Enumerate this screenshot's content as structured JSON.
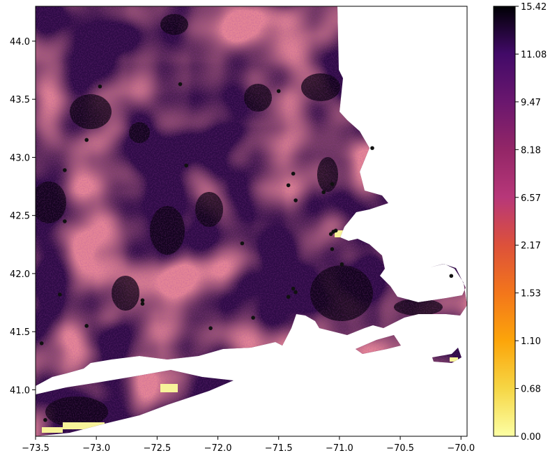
{
  "map": {
    "x_ticks": [
      {
        "value": -73.5,
        "label": "−73.5"
      },
      {
        "value": -73.0,
        "label": "−73.0"
      },
      {
        "value": -72.5,
        "label": "−72.5"
      },
      {
        "value": -72.0,
        "label": "−72.0"
      },
      {
        "value": -71.5,
        "label": "−71.5"
      },
      {
        "value": -71.0,
        "label": "−71.0"
      },
      {
        "value": -70.5,
        "label": "−70.5"
      },
      {
        "value": -70.0,
        "label": "−70.0"
      }
    ],
    "y_ticks": [
      {
        "value": 41.0,
        "label": "41.0"
      },
      {
        "value": 41.5,
        "label": "41.5"
      },
      {
        "value": 42.0,
        "label": "42.0"
      },
      {
        "value": 42.5,
        "label": "42.5"
      },
      {
        "value": 43.0,
        "label": "43.0"
      },
      {
        "value": 43.5,
        "label": "43.5"
      },
      {
        "value": 44.0,
        "label": "44.0"
      }
    ],
    "xlim": [
      -73.5,
      -69.95
    ],
    "ylim": [
      40.6,
      44.3
    ],
    "colormap": "inferno_r",
    "colors": {
      "low": "#fcffa4",
      "mid": "#c73e4c",
      "high": "#000004"
    }
  },
  "colorbar": {
    "ticks": [
      "0.00",
      "0.68",
      "1.10",
      "1.53",
      "2.17",
      "6.57",
      "8.18",
      "9.47",
      "11.08",
      "15.42"
    ]
  },
  "points": [
    {
      "lon": -72.97,
      "lat": 43.61
    },
    {
      "lon": -73.08,
      "lat": 43.15
    },
    {
      "lon": -73.26,
      "lat": 42.89
    },
    {
      "lon": -73.26,
      "lat": 42.45
    },
    {
      "lon": -73.3,
      "lat": 41.82
    },
    {
      "lon": -73.08,
      "lat": 41.55
    },
    {
      "lon": -73.45,
      "lat": 41.4
    },
    {
      "lon": -72.62,
      "lat": 41.77
    },
    {
      "lon": -72.62,
      "lat": 41.74
    },
    {
      "lon": -72.26,
      "lat": 42.93
    },
    {
      "lon": -72.31,
      "lat": 43.63
    },
    {
      "lon": -71.5,
      "lat": 43.57
    },
    {
      "lon": -71.42,
      "lat": 42.76
    },
    {
      "lon": -71.38,
      "lat": 42.86
    },
    {
      "lon": -71.36,
      "lat": 42.63
    },
    {
      "lon": -71.13,
      "lat": 42.7
    },
    {
      "lon": -71.06,
      "lat": 42.77
    },
    {
      "lon": -70.73,
      "lat": 43.08
    },
    {
      "lon": -71.8,
      "lat": 42.26
    },
    {
      "lon": -71.05,
      "lat": 42.36
    },
    {
      "lon": -71.03,
      "lat": 42.37
    },
    {
      "lon": -71.07,
      "lat": 42.34
    },
    {
      "lon": -71.06,
      "lat": 42.21
    },
    {
      "lon": -70.98,
      "lat": 42.08
    },
    {
      "lon": -71.38,
      "lat": 41.87
    },
    {
      "lon": -71.36,
      "lat": 41.84
    },
    {
      "lon": -71.42,
      "lat": 41.8
    },
    {
      "lon": -71.71,
      "lat": 41.62
    },
    {
      "lon": -72.06,
      "lat": 41.53
    },
    {
      "lon": -70.08,
      "lat": 41.98
    },
    {
      "lon": -73.42,
      "lat": 40.74
    }
  ]
}
